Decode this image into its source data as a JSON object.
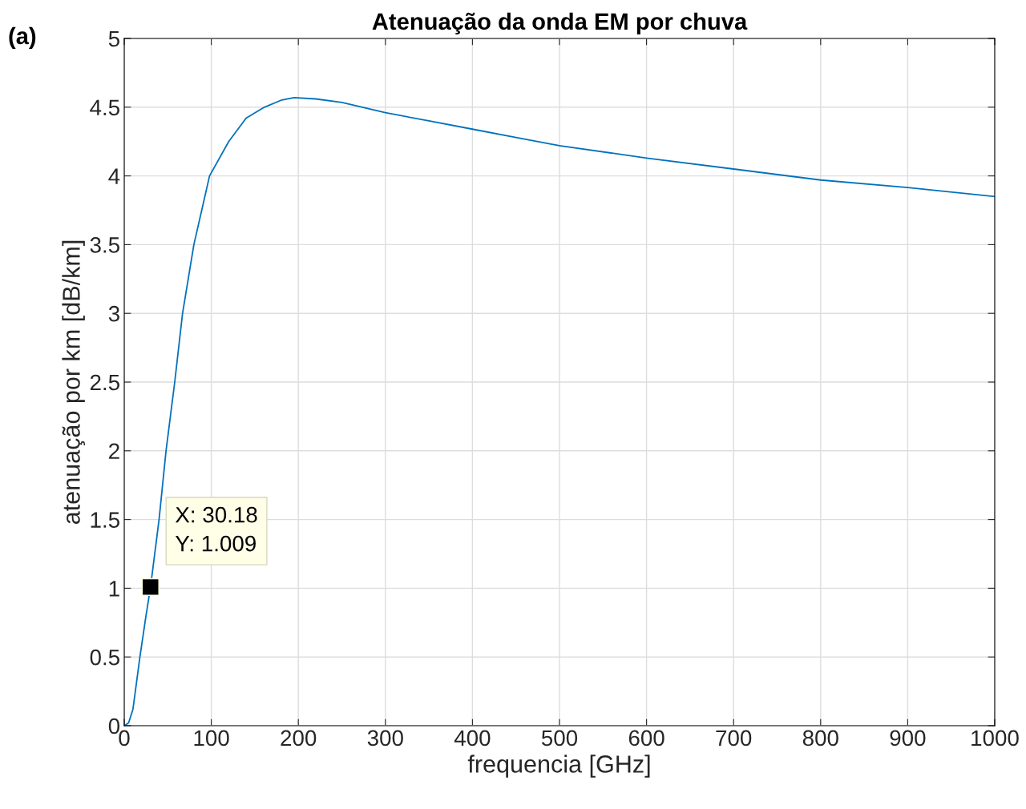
{
  "chart_data": {
    "type": "line",
    "title": "Atenuação da onda EM por chuva",
    "xlabel": "frequencia [GHz]",
    "ylabel": "atenuação por km [dB/km]",
    "series": [
      {
        "color": "#0072bd",
        "x": [
          0,
          5,
          10,
          18,
          25,
          30.18,
          40,
          48,
          58,
          67,
          80,
          98,
          120,
          140,
          161,
          180,
          195,
          220,
          250,
          300,
          350,
          400,
          450,
          500,
          600,
          700,
          800,
          900,
          1000
        ],
        "values": [
          0,
          0.02,
          0.12,
          0.5,
          0.8,
          1.009,
          1.5,
          2,
          2.5,
          3,
          3.5,
          4,
          4.25,
          4.42,
          4.5,
          4.55,
          4.57,
          4.56,
          4.535,
          4.46,
          4.4,
          4.34,
          4.28,
          4.22,
          4.13,
          4.05,
          3.97,
          3.915,
          3.85
        ]
      }
    ],
    "xlim": [
      0,
      1000
    ],
    "xticks": [
      0,
      100,
      200,
      300,
      400,
      500,
      600,
      700,
      800,
      900,
      1000
    ],
    "ylim": [
      0,
      5
    ],
    "yticks": [
      0,
      0.5,
      1,
      1.5,
      2,
      2.5,
      3,
      3.5,
      4,
      4.5,
      5
    ],
    "grid": true,
    "marker": "none",
    "line_style": "solid",
    "annotations": [
      "(a)",
      {
        "text": "X: 30.18\nY: 1.009",
        "x": 30.18,
        "y": 1.009
      }
    ]
  }
}
